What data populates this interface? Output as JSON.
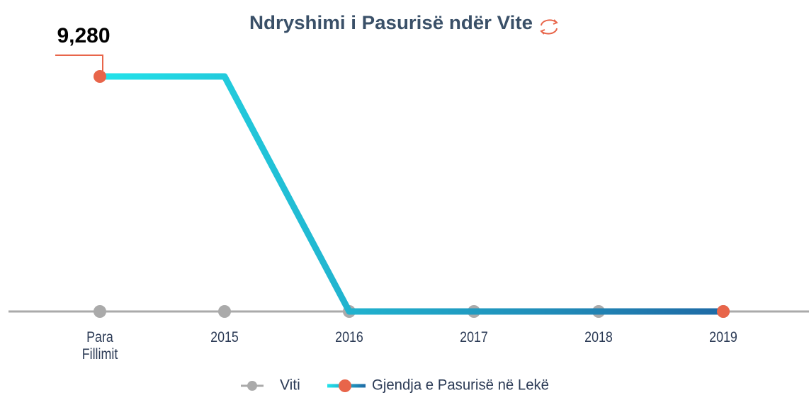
{
  "chart_data": {
    "type": "line",
    "title": "Ndryshimi i Pasurisë ndër Vite",
    "categories": [
      "Para Fillimit",
      "2015",
      "2016",
      "2017",
      "2018",
      "2019"
    ],
    "series": [
      {
        "name": "Viti",
        "color": "#aaaaaa",
        "values": [
          0,
          0,
          0,
          0,
          0,
          0
        ]
      },
      {
        "name": "Gjendja e Pasurisë në Lekë",
        "color": [
          "#22e3ea",
          "#1f6aa5"
        ],
        "marker_color": "#e8654a",
        "values": [
          9280,
          9280,
          0,
          0,
          0,
          0
        ],
        "value_labels": [
          "9,280",
          null,
          null,
          null,
          null,
          null
        ]
      }
    ],
    "ylim": [
      0,
      9280
    ]
  }
}
